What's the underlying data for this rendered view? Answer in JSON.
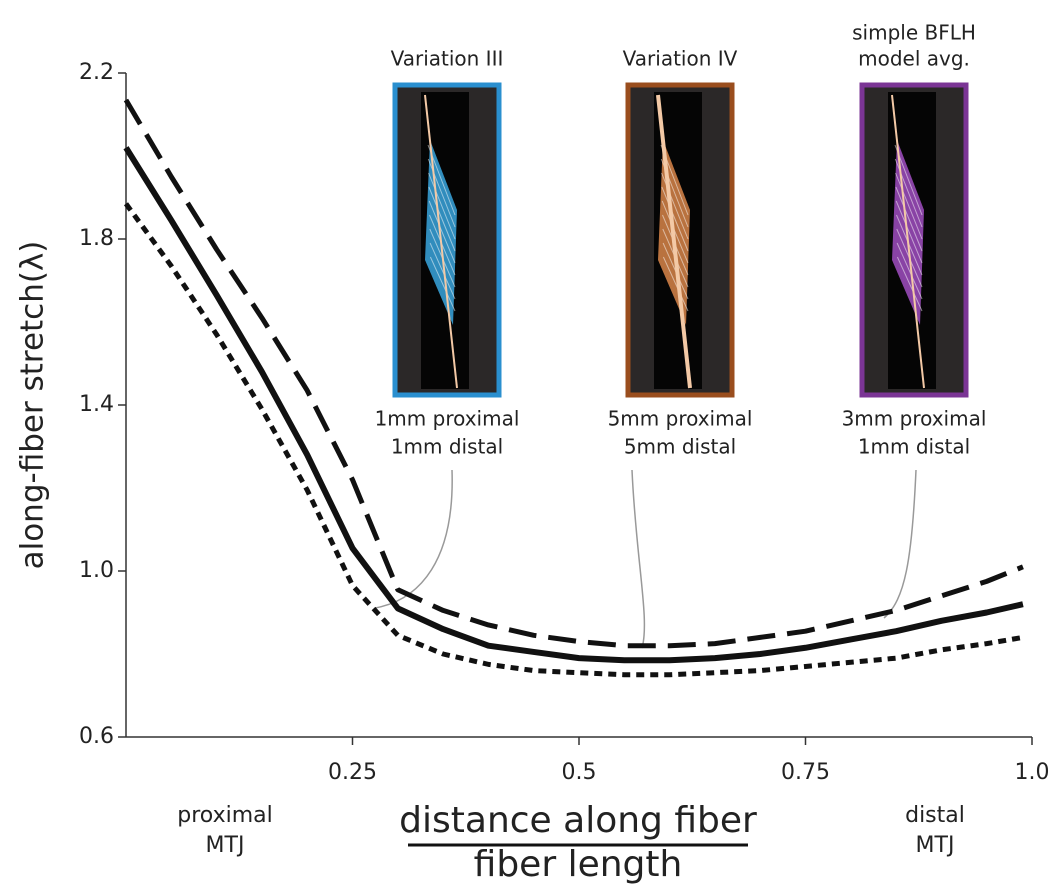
{
  "chart_data": {
    "type": "line",
    "y_label": "along-fiber stretch(λ)",
    "x_label_numerator": "distance along fiber",
    "x_label_denominator": "fiber length",
    "x_end_labels": [
      [
        "proximal",
        "MTJ"
      ],
      [
        "distal",
        "MTJ"
      ]
    ],
    "x": [
      0,
      0.05,
      0.1,
      0.15,
      0.2,
      0.25,
      0.3,
      0.35,
      0.4,
      0.45,
      0.5,
      0.55,
      0.6,
      0.65,
      0.7,
      0.75,
      0.8,
      0.85,
      0.9,
      0.95,
      0.99
    ],
    "series": [
      {
        "color": "#111111",
        "dash": "solid",
        "values": [
          2.02,
          1.845,
          1.665,
          1.48,
          1.28,
          1.055,
          0.91,
          0.86,
          0.82,
          0.805,
          0.79,
          0.785,
          0.785,
          0.79,
          0.8,
          0.815,
          0.835,
          0.855,
          0.88,
          0.9,
          0.92
        ]
      },
      {
        "color": "#111111",
        "dash": "dashed",
        "values": [
          2.135,
          1.95,
          1.775,
          1.61,
          1.435,
          1.22,
          0.955,
          0.905,
          0.87,
          0.845,
          0.83,
          0.82,
          0.82,
          0.825,
          0.84,
          0.855,
          0.88,
          0.905,
          0.94,
          0.975,
          1.01
        ]
      },
      {
        "color": "#111111",
        "dash": "dotted",
        "values": [
          1.885,
          1.735,
          1.57,
          1.39,
          1.195,
          0.965,
          0.845,
          0.8,
          0.775,
          0.76,
          0.755,
          0.75,
          0.75,
          0.755,
          0.76,
          0.77,
          0.78,
          0.79,
          0.81,
          0.825,
          0.84
        ]
      }
    ],
    "xlim": [
      0,
      1
    ],
    "ylim": [
      0.6,
      2.2
    ],
    "xticks": [
      0.25,
      0.5,
      0.75,
      {
        "value": 1,
        "label": "1.0"
      }
    ],
    "yticks": [
      0.6,
      {
        "value": 1,
        "label": "1.0"
      },
      1.4,
      1.8,
      2.2
    ],
    "panels": [
      {
        "title": [
          "Variation III"
        ],
        "caption": [
          "1mm proximal",
          "1mm distal"
        ],
        "color": "#2a8fcf",
        "fiber_color": "#3aa6de"
      },
      {
        "title": [
          "Variation IV"
        ],
        "caption": [
          "5mm proximal",
          "5mm distal"
        ],
        "color": "#9a4e1e",
        "fiber_color": "#d9864a"
      },
      {
        "title": [
          "simple BFLH",
          "model avg."
        ],
        "caption": [
          "3mm proximal",
          "1mm distal"
        ],
        "color": "#7b3595",
        "fiber_color": "#a14fc2"
      }
    ]
  }
}
